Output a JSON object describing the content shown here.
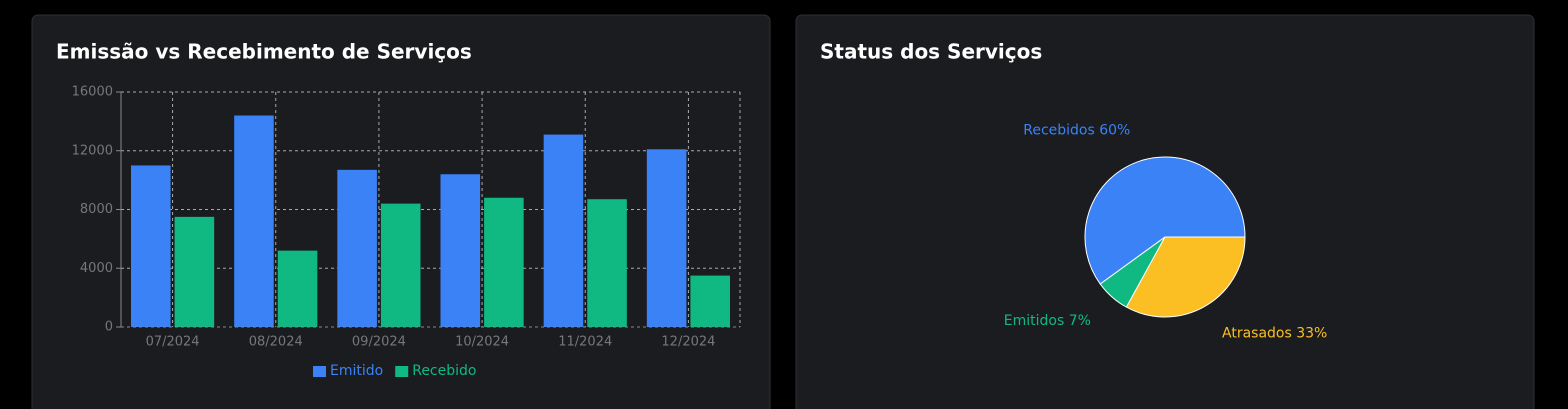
{
  "chart_data": [
    {
      "type": "bar",
      "title": "Emissão vs Recebimento de Serviços",
      "categories": [
        "07/2024",
        "08/2024",
        "09/2024",
        "10/2024",
        "11/2024",
        "12/2024"
      ],
      "series": [
        {
          "name": "Emitido",
          "color": "#3b82f6",
          "values": [
            11000,
            14400,
            10700,
            10400,
            13100,
            12100
          ]
        },
        {
          "name": "Recebido",
          "color": "#10b981",
          "values": [
            7500,
            5200,
            8400,
            8800,
            8700,
            3500
          ]
        }
      ],
      "ylim": [
        0,
        16000
      ],
      "yticks": [
        0,
        4000,
        8000,
        12000,
        16000
      ],
      "grid": true
    },
    {
      "type": "pie",
      "title": "Status dos Serviços",
      "values": [
        60,
        7,
        33
      ],
      "value_labels": [
        "Recebidos 60%",
        "Emitidos 7%",
        "Atrasados 33%"
      ],
      "colors": [
        "#3b82f6",
        "#10b981",
        "#fbbf24"
      ]
    }
  ]
}
